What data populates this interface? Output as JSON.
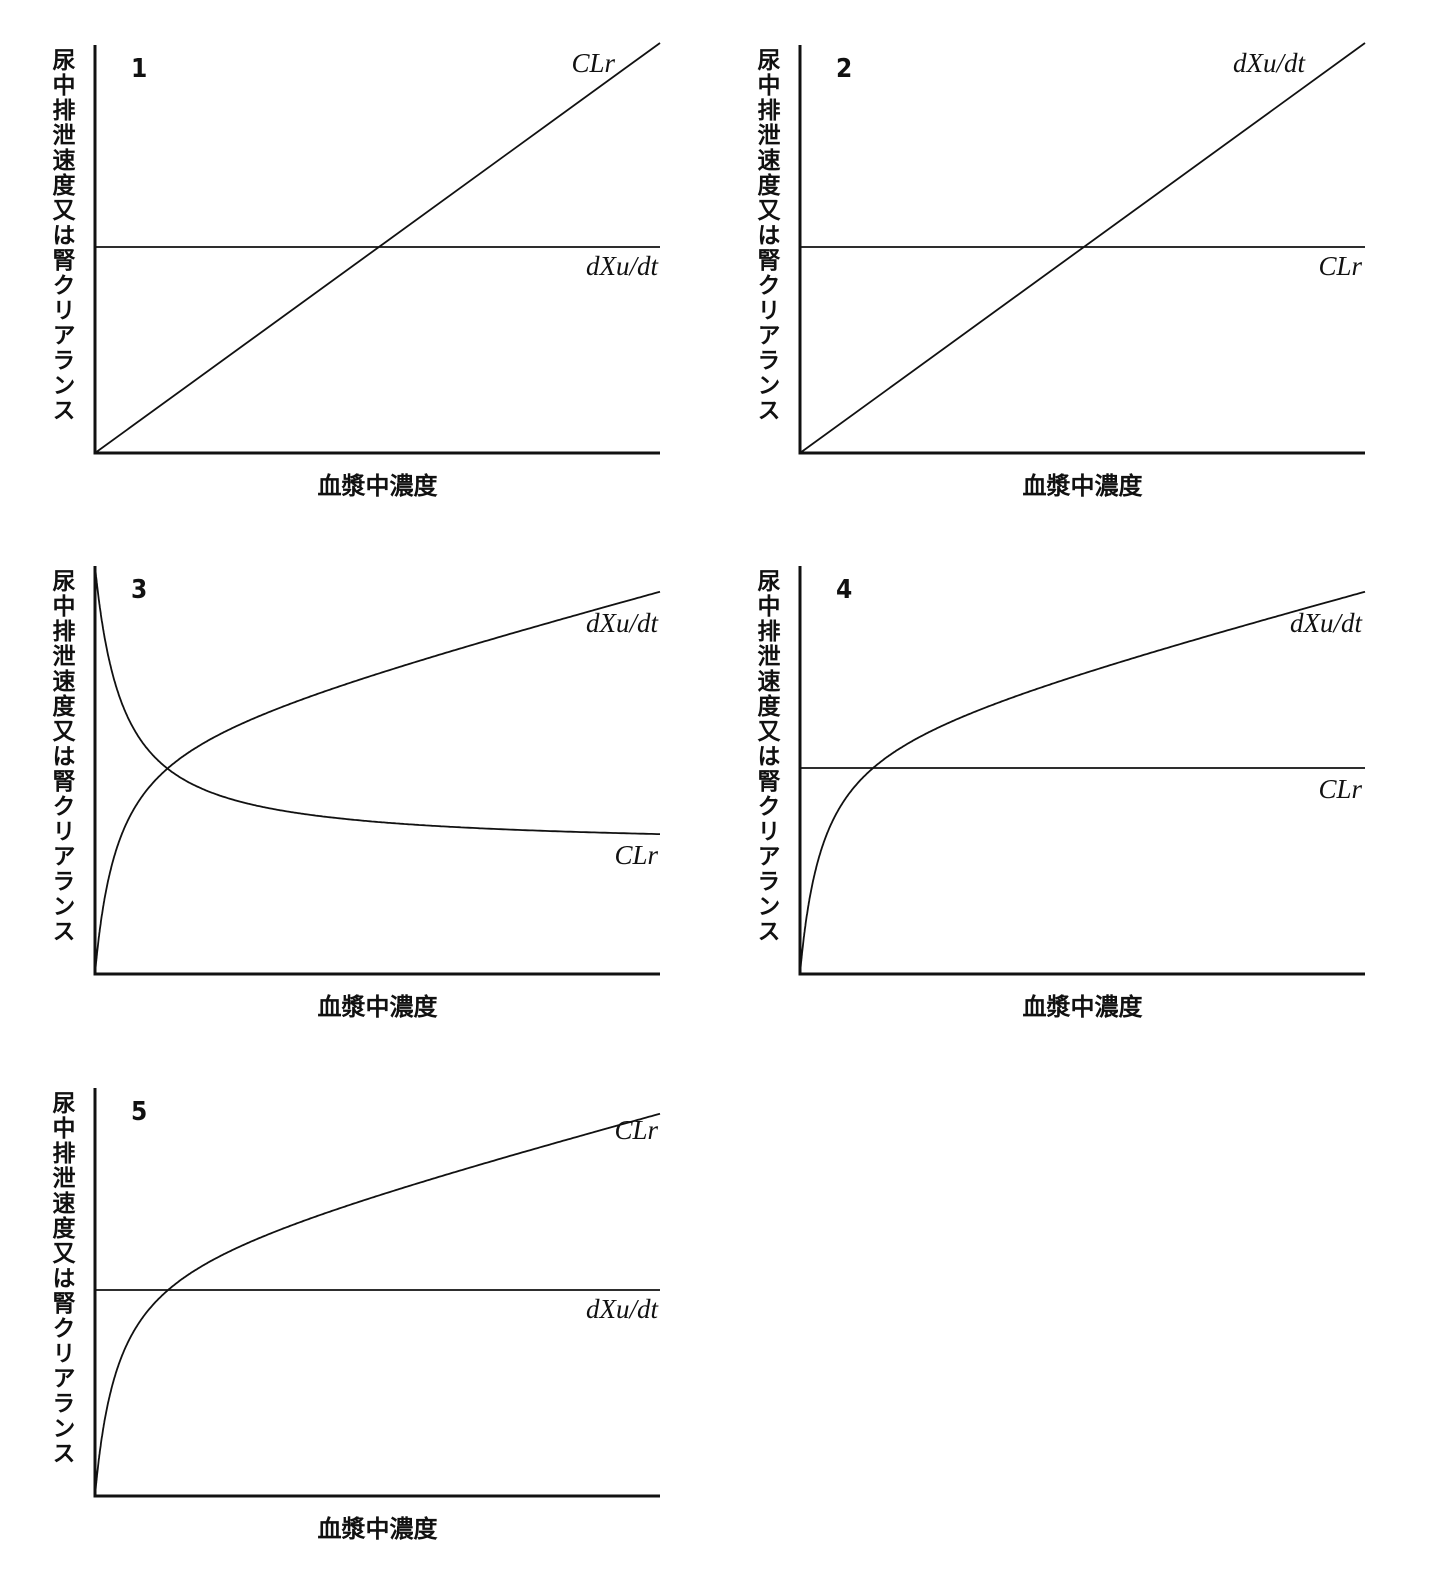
{
  "panels": [
    {
      "number": "1",
      "y_label": "尿中排泄速度又は腎クリアランス",
      "x_label": "血漿中濃度",
      "curve_labels": [
        "CLr",
        "dXu/dt"
      ]
    },
    {
      "number": "2",
      "y_label": "尿中排泄速度又は腎クリアランス",
      "x_label": "血漿中濃度",
      "curve_labels": [
        "dXu/dt",
        "CLr"
      ]
    },
    {
      "number": "3",
      "y_label": "尿中排泄速度又は腎クリアランス",
      "x_label": "血漿中濃度",
      "curve_labels": [
        "dXu/dt",
        "CLr"
      ]
    },
    {
      "number": "4",
      "y_label": "尿中排泄速度又は腎クリアランス",
      "x_label": "血漿中濃度",
      "curve_labels": [
        "dXu/dt",
        "CLr"
      ]
    },
    {
      "number": "5",
      "y_label": "尿中排泄速度又は腎クリアランス",
      "x_label": "血漿中濃度",
      "curve_labels": [
        "CLr",
        "dXu/dt"
      ]
    }
  ]
}
